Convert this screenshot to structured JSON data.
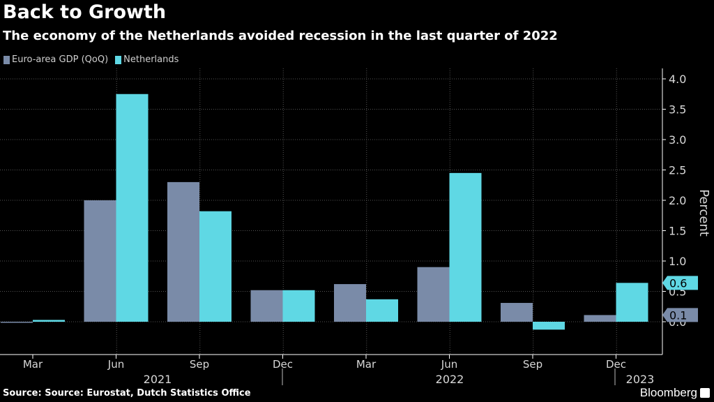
{
  "title": "Back to Growth",
  "subtitle": "The economy of the Netherlands avoided recession in the last quarter of 2022",
  "source": "Source: Source: Eurostat, Dutch Statistics Office",
  "brand": "Bloomberg",
  "colors": {
    "euro": "#7a8ba8",
    "netherlands": "#5fd8e4",
    "grid": "#555555",
    "axis_text": "#d8d8d8"
  },
  "chart_data": {
    "type": "bar",
    "title": "Back to Growth",
    "categories": [
      "Mar",
      "Jun",
      "Sep",
      "Dec",
      "Mar",
      "Jun",
      "Sep",
      "Dec"
    ],
    "year_labels": [
      {
        "label": "2021",
        "span": [
          0,
          3
        ]
      },
      {
        "label": "2022",
        "span": [
          4,
          7
        ]
      },
      {
        "label": "2023",
        "span": [
          7,
          7
        ]
      }
    ],
    "series": [
      {
        "name": "Euro-area GDP (QoQ)",
        "values": [
          -0.01,
          2.0,
          2.3,
          0.52,
          0.62,
          0.9,
          0.31,
          0.11
        ]
      },
      {
        "name": "Netherlands",
        "values": [
          0.03,
          3.75,
          1.82,
          0.52,
          0.37,
          2.45,
          -0.13,
          0.64
        ]
      }
    ],
    "ylabel": "Percent",
    "ylim": [
      -0.5,
      4.0
    ],
    "yticks": [
      "4.0",
      "3.5",
      "3.0",
      "2.5",
      "2.0",
      "1.5",
      "1.0",
      "0.5",
      "0.0"
    ],
    "last_value_tags": [
      {
        "series": "Netherlands",
        "label": "0.6"
      },
      {
        "series": "Euro-area GDP (QoQ)",
        "label": "0.1"
      }
    ]
  }
}
